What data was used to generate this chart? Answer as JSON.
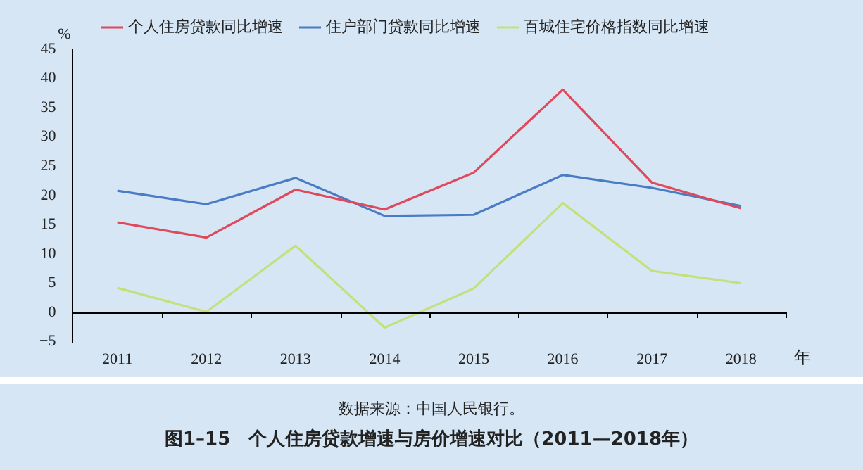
{
  "chart_data": {
    "type": "line",
    "title": "图1–15　个人住房贷款增速与房价增速对比（2011—2018年）",
    "ylabel": "%",
    "xlabel": "年",
    "annotations": [
      "数据来源：中国人民银行。"
    ],
    "categories": [
      "2011",
      "2012",
      "2013",
      "2014",
      "2015",
      "2016",
      "2017",
      "2018"
    ],
    "series": [
      {
        "name": "个人住房贷款同比增速",
        "color": "#e0485c",
        "values": [
          15.4,
          12.8,
          21.0,
          17.6,
          23.9,
          38.1,
          22.2,
          17.8
        ]
      },
      {
        "name": "住户部门贷款同比增速",
        "color": "#4a7cc4",
        "values": [
          20.8,
          18.5,
          23.0,
          16.5,
          16.7,
          23.5,
          21.3,
          18.2
        ]
      },
      {
        "name": "百城住宅价格指数同比增速",
        "color": "#c5e07a",
        "values": [
          4.2,
          0.1,
          11.4,
          -2.6,
          4.1,
          18.7,
          7.1,
          5.0
        ]
      }
    ],
    "ylim": [
      -5,
      45
    ],
    "yticks": [
      -5,
      0,
      5,
      10,
      15,
      20,
      25,
      30,
      35,
      40,
      45
    ],
    "legend": "top",
    "marker": "none",
    "line_style": "solid",
    "grid": false
  }
}
